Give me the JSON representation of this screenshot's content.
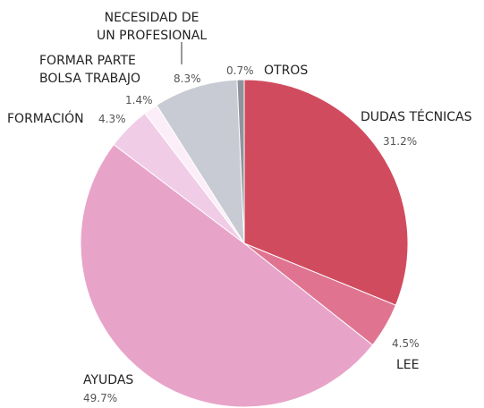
{
  "chart_data": {
    "type": "pie",
    "categories": [
      "DUDAS TÉCNICAS",
      "LEE",
      "AYUDAS",
      "FORMACIÓN",
      "FORMAR PARTE\nBOLSA TRABAJO",
      "NECESIDAD DE\nUN PROFESIONAL",
      "OTROS"
    ],
    "values": [
      31.2,
      4.5,
      49.7,
      4.3,
      1.4,
      8.3,
      0.7
    ],
    "value_labels": [
      "31.2%",
      "4.5%",
      "49.7%",
      "4.3%",
      "1.4%",
      "8.3%",
      "0.7%"
    ],
    "colors": [
      "#d14b5f",
      "#e07490",
      "#e8a3c9",
      "#f0cce6",
      "#fbeef8",
      "#c9cbd4",
      "#8f949c"
    ]
  }
}
